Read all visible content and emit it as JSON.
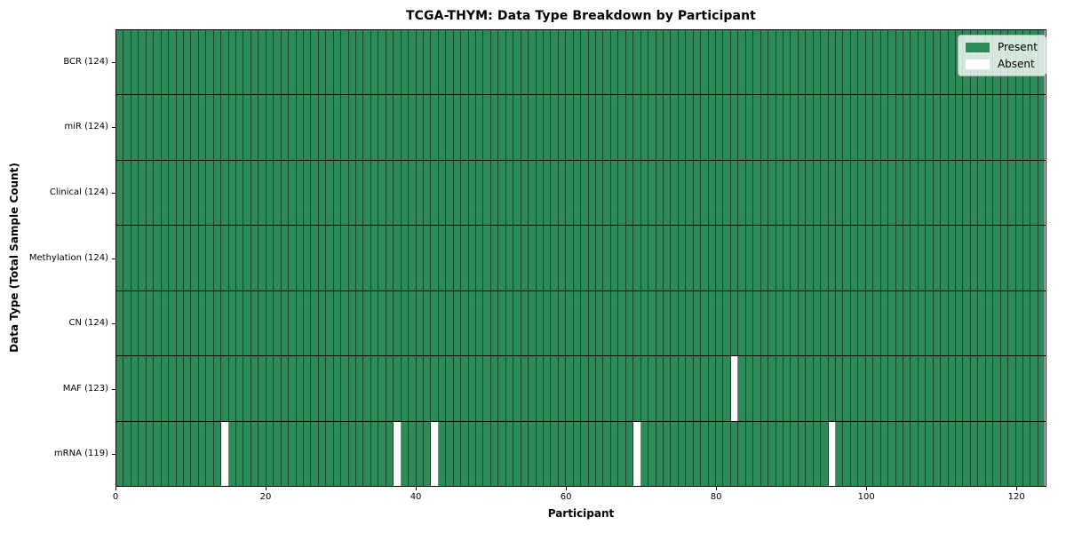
{
  "chart_data": {
    "type": "heatmap",
    "title": "TCGA-THYM: Data Type Breakdown by Participant",
    "xlabel": "Participant",
    "ylabel": "Data Type (Total Sample Count)",
    "n_participants": 124,
    "x_range": [
      0,
      124
    ],
    "x_ticks": [
      0,
      20,
      40,
      60,
      80,
      100,
      120
    ],
    "grid": "cell-edges",
    "rows": [
      {
        "label": "BCR (124)",
        "data_type": "BCR",
        "present_count": 124,
        "absent_participants": []
      },
      {
        "label": "miR (124)",
        "data_type": "miR",
        "present_count": 124,
        "absent_participants": []
      },
      {
        "label": "Clinical (124)",
        "data_type": "Clinical",
        "present_count": 124,
        "absent_participants": []
      },
      {
        "label": "Methylation (124)",
        "data_type": "Methylation",
        "present_count": 124,
        "absent_participants": []
      },
      {
        "label": "CN (124)",
        "data_type": "CN",
        "present_count": 124,
        "absent_participants": []
      },
      {
        "label": "MAF (123)",
        "data_type": "MAF",
        "present_count": 123,
        "absent_participants": [
          82
        ]
      },
      {
        "label": "mRNA (119)",
        "data_type": "mRNA",
        "present_count": 119,
        "absent_participants": [
          14,
          37,
          42,
          69,
          95
        ]
      }
    ],
    "legend": {
      "position": "top-right",
      "entries": [
        {
          "label": "Present",
          "color": "#2e8b57"
        },
        {
          "label": "Absent",
          "color": "#ffffff"
        }
      ]
    },
    "colors": {
      "present": "#2e8b57",
      "absent": "#ffffff"
    }
  }
}
